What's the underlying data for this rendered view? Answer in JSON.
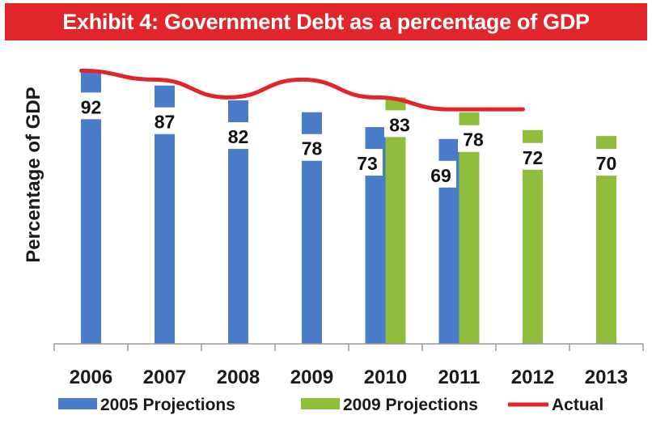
{
  "chart_data": {
    "type": "bar",
    "title": "Exhibit 4: Government Debt as a percentage of GDP",
    "ylabel": "Percentage of GDP",
    "xlabel": "",
    "categories": [
      "2006",
      "2007",
      "2008",
      "2009",
      "2010",
      "2011",
      "2012",
      "2013"
    ],
    "ylim": [
      0,
      100
    ],
    "grid": false,
    "legend_position": "bottom",
    "series": [
      {
        "name": "2005 Projections",
        "kind": "bar",
        "color": "#4a7cc9",
        "values": [
          92,
          87,
          82,
          78,
          73,
          69,
          null,
          null
        ]
      },
      {
        "name": "2009 Projections",
        "kind": "bar",
        "color": "#8fbd3c",
        "values": [
          null,
          null,
          null,
          null,
          83,
          78,
          72,
          70
        ]
      },
      {
        "name": "Actual",
        "kind": "line",
        "color": "#e0262b",
        "values": [
          92,
          89,
          83,
          89,
          83,
          79,
          79,
          null
        ]
      }
    ]
  }
}
